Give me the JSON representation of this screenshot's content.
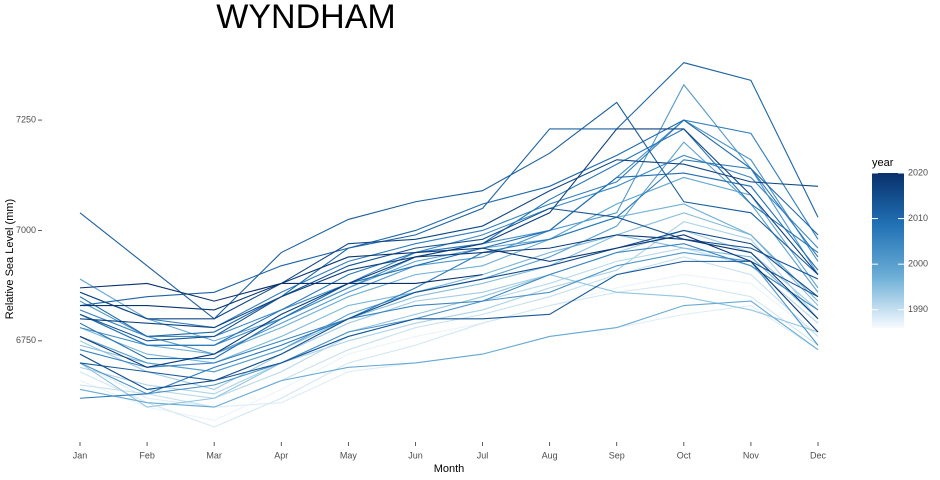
{
  "chart_data": {
    "type": "line",
    "title": "WYNDHAM",
    "x_label": "Month",
    "y_label": "Relative Sea Level (mm)",
    "categories": [
      "Jan",
      "Feb",
      "Mar",
      "Apr",
      "May",
      "Jun",
      "Jul",
      "Aug",
      "Sep",
      "Oct",
      "Nov",
      "Dec"
    ],
    "ylim": [
      6530,
      7420
    ],
    "yticks": [
      6750,
      7000,
      7250
    ],
    "grid": false,
    "colorbar": {
      "title": "year",
      "lim": [
        1986,
        2020
      ],
      "ticks": [
        1990,
        2000,
        2010,
        2020
      ],
      "colors": [
        "#f7fbff",
        "#6baed6",
        "#2171b5",
        "#08306b"
      ]
    },
    "series": [
      {
        "year": 1987,
        "values": [
          6660,
          6600,
          6570,
          6640,
          6720,
          6760,
          6790,
          6830,
          6870,
          6900,
          6880,
          6760
        ]
      },
      {
        "year": 1988,
        "values": [
          6700,
          6620,
          6600,
          6610,
          6680,
          6700,
          6720,
          6760,
          6780,
          6810,
          6830,
          6730
        ]
      },
      {
        "year": 1989,
        "values": [
          6680,
          6610,
          6555,
          6620,
          6700,
          6740,
          6790,
          6830,
          6860,
          6880,
          6850,
          6740
        ]
      },
      {
        "year": 1990,
        "values": [
          6650,
          6630,
          6600,
          6660,
          6730,
          6780,
          6810,
          6850,
          6900,
          6940,
          6900,
          6760
        ]
      },
      {
        "year": 1991,
        "values": [
          6720,
          6640,
          6620,
          6680,
          6760,
          6800,
          6840,
          6880,
          6930,
          6960,
          6920,
          6790
        ]
      },
      {
        "year": 1992,
        "values": [
          6690,
          6650,
          6630,
          6700,
          6750,
          6790,
          6820,
          6870,
          6910,
          7020,
          6980,
          6800
        ]
      },
      {
        "year": 1993,
        "values": [
          6750,
          6680,
          6640,
          6720,
          6790,
          6840,
          6860,
          6900,
          6950,
          7000,
          6950,
          6820
        ]
      },
      {
        "year": 1994,
        "values": [
          6700,
          6600,
          6620,
          6700,
          6770,
          6810,
          6850,
          6900,
          6860,
          6850,
          6820,
          6770
        ]
      },
      {
        "year": 1995,
        "values": [
          6740,
          6700,
          6680,
          6730,
          6800,
          6850,
          6880,
          6920,
          6990,
          7040,
          6990,
          6830
        ]
      },
      {
        "year": 1996,
        "values": [
          6780,
          6720,
          6700,
          6760,
          6830,
          6860,
          6900,
          6950,
          6990,
          6960,
          6940,
          6800
        ]
      },
      {
        "year": 1997,
        "values": [
          6810,
          6740,
          6720,
          6780,
          6850,
          6900,
          6920,
          6980,
          7030,
          7060,
          6990,
          6840
        ]
      },
      {
        "year": 1998,
        "values": [
          6640,
          6610,
          6600,
          6660,
          6690,
          6700,
          6720,
          6760,
          6780,
          6830,
          6840,
          6730
        ]
      },
      {
        "year": 1999,
        "values": [
          6890,
          6800,
          6750,
          6800,
          6870,
          6930,
          6960,
          6980,
          7060,
          7120,
          7080,
          6870
        ]
      },
      {
        "year": 2000,
        "values": [
          6760,
          6700,
          6680,
          6730,
          6810,
          6860,
          6890,
          6940,
          7010,
          7200,
          7060,
          6860
        ]
      },
      {
        "year": 2001,
        "values": [
          6840,
          6760,
          6720,
          6790,
          6860,
          6920,
          6940,
          7000,
          7040,
          7330,
          7140,
          6900
        ]
      },
      {
        "year": 2002,
        "values": [
          6700,
          6630,
          6650,
          6700,
          6770,
          6800,
          6840,
          6860,
          6920,
          6950,
          6930,
          6740
        ]
      },
      {
        "year": 2003,
        "values": [
          6780,
          6740,
          6740,
          6800,
          6870,
          6940,
          6970,
          7000,
          7120,
          7250,
          7160,
          6930
        ]
      },
      {
        "year": 2004,
        "values": [
          6820,
          6760,
          6760,
          6820,
          6880,
          6950,
          6990,
          7050,
          7100,
          7170,
          7120,
          6960
        ]
      },
      {
        "year": 2005,
        "values": [
          6730,
          6690,
          6700,
          6750,
          6800,
          6830,
          6840,
          6900,
          6950,
          6970,
          6920,
          6820
        ]
      },
      {
        "year": 2006,
        "values": [
          6860,
          6800,
          6780,
          6860,
          6930,
          6970,
          7000,
          7060,
          7110,
          7250,
          7220,
          6980
        ]
      },
      {
        "year": 2007,
        "values": [
          6620,
          6630,
          6690,
          6740,
          6800,
          6870,
          6950,
          6980,
          7030,
          7160,
          7140,
          6940
        ]
      },
      {
        "year": 2008,
        "values": [
          6810,
          6740,
          6740,
          6820,
          6900,
          6950,
          6970,
          7070,
          7150,
          7230,
          7060,
          6950
        ]
      },
      {
        "year": 2009,
        "values": [
          6790,
          6710,
          6710,
          6800,
          6880,
          6920,
          6960,
          7000,
          7120,
          7130,
          7100,
          6910
        ]
      },
      {
        "year": 2010,
        "values": [
          6850,
          6760,
          6770,
          6850,
          6960,
          7000,
          7060,
          7100,
          7170,
          7250,
          7140,
          6990
        ]
      },
      {
        "year": 2011,
        "values": [
          6830,
          6850,
          6860,
          6920,
          6960,
          6990,
          7050,
          7230,
          7230,
          7380,
          7340,
          7030
        ]
      },
      {
        "year": 2012,
        "values": [
          7040,
          6920,
          6800,
          6950,
          7025,
          7065,
          7090,
          7175,
          7290,
          7065,
          7040,
          6900
        ]
      },
      {
        "year": 2013,
        "values": [
          6700,
          6680,
          6660,
          6700,
          6760,
          6800,
          6800,
          6810,
          6900,
          6930,
          6930,
          6850
        ]
      },
      {
        "year": 2014,
        "values": [
          6810,
          6750,
          6760,
          6850,
          6920,
          6960,
          6980,
          7050,
          7030,
          6980,
          6960,
          6890
        ]
      },
      {
        "year": 2015,
        "values": [
          6720,
          6640,
          6660,
          6720,
          6800,
          6860,
          6890,
          6920,
          6960,
          7000,
          6970,
          6850
        ]
      },
      {
        "year": 2016,
        "values": [
          6860,
          6800,
          6800,
          6880,
          6970,
          6980,
          7010,
          7090,
          7160,
          7150,
          7110,
          7100
        ]
      },
      {
        "year": 2017,
        "values": [
          6800,
          6790,
          6780,
          6850,
          6910,
          6940,
          6970,
          7040,
          7230,
          7230,
          7080,
          6900
        ]
      },
      {
        "year": 2018,
        "values": [
          6760,
          6690,
          6720,
          6810,
          6880,
          6940,
          6950,
          6960,
          6990,
          6980,
          6950,
          6800
        ]
      },
      {
        "year": 2019,
        "values": [
          6830,
          6830,
          6820,
          6880,
          6940,
          6950,
          6960,
          6930,
          6960,
          6990,
          6930,
          6770
        ]
      },
      {
        "year": 2020,
        "values": [
          6870,
          6880,
          6840,
          6880,
          6880,
          6880,
          6900,
          null,
          null,
          null,
          null,
          null
        ]
      }
    ]
  }
}
